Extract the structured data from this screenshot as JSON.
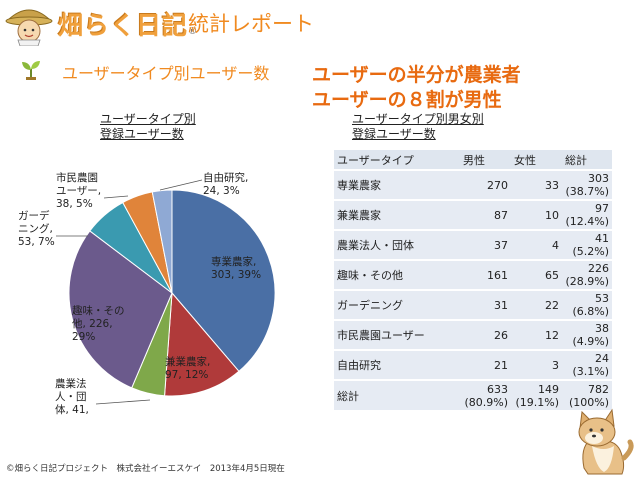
{
  "header": {
    "logo_text": "畑らく日記",
    "logo_registered": "®",
    "title": "統計レポート",
    "section_title": "ユーザータイプ別ユーザー数"
  },
  "headlines": [
    "ユーザーの半分が農業者",
    "ユーザーの８割が男性"
  ],
  "footer": "©畑らく日記プロジェクト　株式会社イーエスケイ　2013年4月5日現在",
  "chart_data": [
    {
      "type": "pie",
      "title": "ユーザータイプ別\n登録ユーザー数",
      "slices": [
        {
          "label": "専業農家",
          "value": 303,
          "percent": "39%",
          "color": "#4a6fa5",
          "label_text": "専業農家,\n303, 39%"
        },
        {
          "label": "兼業農家",
          "value": 97,
          "percent": "12%",
          "color": "#b03a3a",
          "label_text": "兼業農家,\n97, 12%"
        },
        {
          "label": "農業法人・団体",
          "value": 41,
          "percent": "5%",
          "color": "#7fa84a",
          "label_text": "農業法\n人・団\n体, 41,"
        },
        {
          "label": "趣味・その他",
          "value": 226,
          "percent": "29%",
          "color": "#6b5a8c",
          "label_text": "趣味・その\n他, 226,\n29%"
        },
        {
          "label": "ガーデニング",
          "value": 53,
          "percent": "7%",
          "color": "#3a9ab0",
          "label_text": "ガーデ\nニング,\n53, 7%"
        },
        {
          "label": "市民農園ユーザー",
          "value": 38,
          "percent": "5%",
          "color": "#e0843a",
          "label_text": "市民農園\nユーザー,\n38, 5%"
        },
        {
          "label": "自由研究",
          "value": 24,
          "percent": "3%",
          "color": "#8fa9d4",
          "label_text": "自由研究,\n24, 3%"
        }
      ]
    },
    {
      "type": "table",
      "title": "ユーザータイプ別男女別\n登録ユーザー数",
      "columns": [
        "ユーザータイプ",
        "男性",
        "女性",
        "総計"
      ],
      "rows": [
        {
          "type": "専業農家",
          "male": "270",
          "female": "33",
          "total": "303",
          "total_pct": "(38.7%)"
        },
        {
          "type": "兼業農家",
          "male": "87",
          "female": "10",
          "total": "97",
          "total_pct": "(12.4%)"
        },
        {
          "type": "農業法人・団体",
          "male": "37",
          "female": "4",
          "total": "41",
          "total_pct": "(5.2%)"
        },
        {
          "type": "趣味・その他",
          "male": "161",
          "female": "65",
          "total": "226",
          "total_pct": "(28.9%)"
        },
        {
          "type": "ガーデニング",
          "male": "31",
          "female": "22",
          "total": "53",
          "total_pct": "(6.8%)"
        },
        {
          "type": "市民農園ユーザー",
          "male": "26",
          "female": "12",
          "total": "38",
          "total_pct": "(4.9%)"
        },
        {
          "type": "自由研究",
          "male": "21",
          "female": "3",
          "total": "24",
          "total_pct": "(3.1%)"
        }
      ],
      "total_row": {
        "type": "総計",
        "male": "633",
        "male_pct": "(80.9%)",
        "female": "149",
        "female_pct": "(19.1%)",
        "total": "782",
        "total_pct": "(100%)"
      }
    }
  ]
}
